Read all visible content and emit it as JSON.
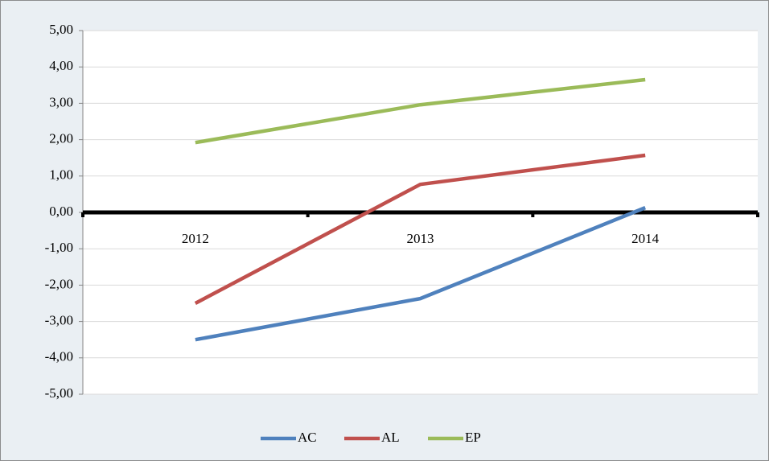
{
  "chart_data": {
    "type": "line",
    "categories": [
      "2012",
      "2013",
      "2014"
    ],
    "series": [
      {
        "name": "AC",
        "color": "#4f81bd",
        "values": [
          -3.5,
          -2.37,
          0.13
        ]
      },
      {
        "name": "AL",
        "color": "#c0504d",
        "values": [
          -2.5,
          0.77,
          1.57
        ]
      },
      {
        "name": "EP",
        "color": "#9bbb59",
        "values": [
          1.92,
          2.96,
          3.65
        ]
      }
    ],
    "ylim": [
      -5,
      5
    ],
    "yticks": [
      {
        "value": -5,
        "label": "-5,00"
      },
      {
        "value": -4,
        "label": "-4,00"
      },
      {
        "value": -3,
        "label": "-3,00"
      },
      {
        "value": -2,
        "label": "-2,00"
      },
      {
        "value": -1,
        "label": "-1,00"
      },
      {
        "value": 0,
        "label": "0,00"
      },
      {
        "value": 1,
        "label": "1,00"
      },
      {
        "value": 2,
        "label": "2,00"
      },
      {
        "value": 3,
        "label": "3,00"
      },
      {
        "value": 4,
        "label": "4,00"
      },
      {
        "value": 5,
        "label": "5,00"
      }
    ],
    "grid": true,
    "legend": "bottom"
  }
}
